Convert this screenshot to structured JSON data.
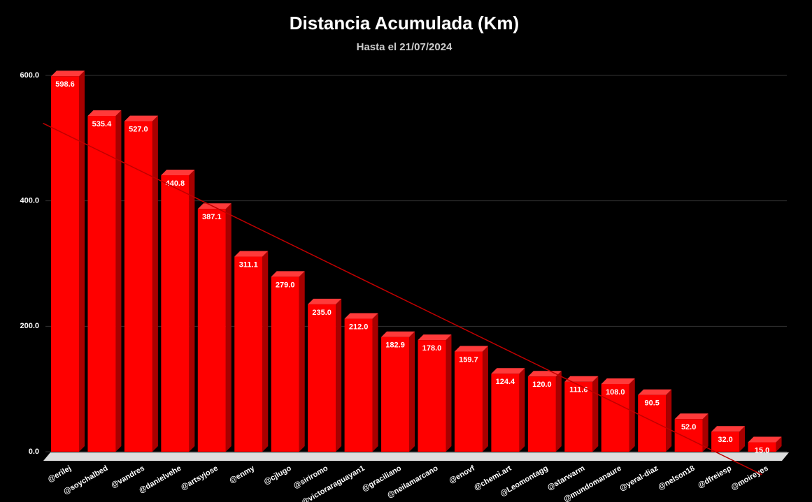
{
  "chart_data": {
    "type": "bar3d",
    "title": "Distancia Acumulada (Km)",
    "subtitle": "Hasta el 21/07/2024",
    "categories": [
      "@erilej",
      "@soychalbed",
      "@vandres",
      "@danielvehe",
      "@artsyjose",
      "@enmy",
      "@cjlugo",
      "@siriromo",
      "@victoraraguayan1",
      "@graciliano",
      "@neilamarcano",
      "@enovf",
      "@chemi.art",
      "@Leomontagg",
      "@starwarm",
      "@mundomanaure",
      "@yeral-diaz",
      "@nelson18",
      "@dfreiesp",
      "@moireyes"
    ],
    "values": [
      598.6,
      535.4,
      527.0,
      440.8,
      387.1,
      311.1,
      279.0,
      235.0,
      212.0,
      182.9,
      178.0,
      159.7,
      124.4,
      120.0,
      111.6,
      108.0,
      90.5,
      52.0,
      32.0,
      15.0
    ],
    "value_labels": [
      "598.6",
      "535.4",
      "527.0",
      "440.8",
      "387.1",
      "311.1",
      "279.0",
      "235.0",
      "212.0",
      "182.9",
      "178.0",
      "159.7",
      "124.4",
      "120.0",
      "111.6",
      "108.0",
      "90.5",
      "52.0",
      "32.0",
      "15.0"
    ],
    "color": "#ff0000",
    "ylim": [
      0,
      600
    ],
    "yticks": [
      {
        "value": 0,
        "label": "0.0"
      },
      {
        "value": 200,
        "label": "200.0"
      },
      {
        "value": 400,
        "label": "400.0"
      },
      {
        "value": 600,
        "label": "600.0"
      }
    ],
    "grid": true,
    "trendline": true
  }
}
